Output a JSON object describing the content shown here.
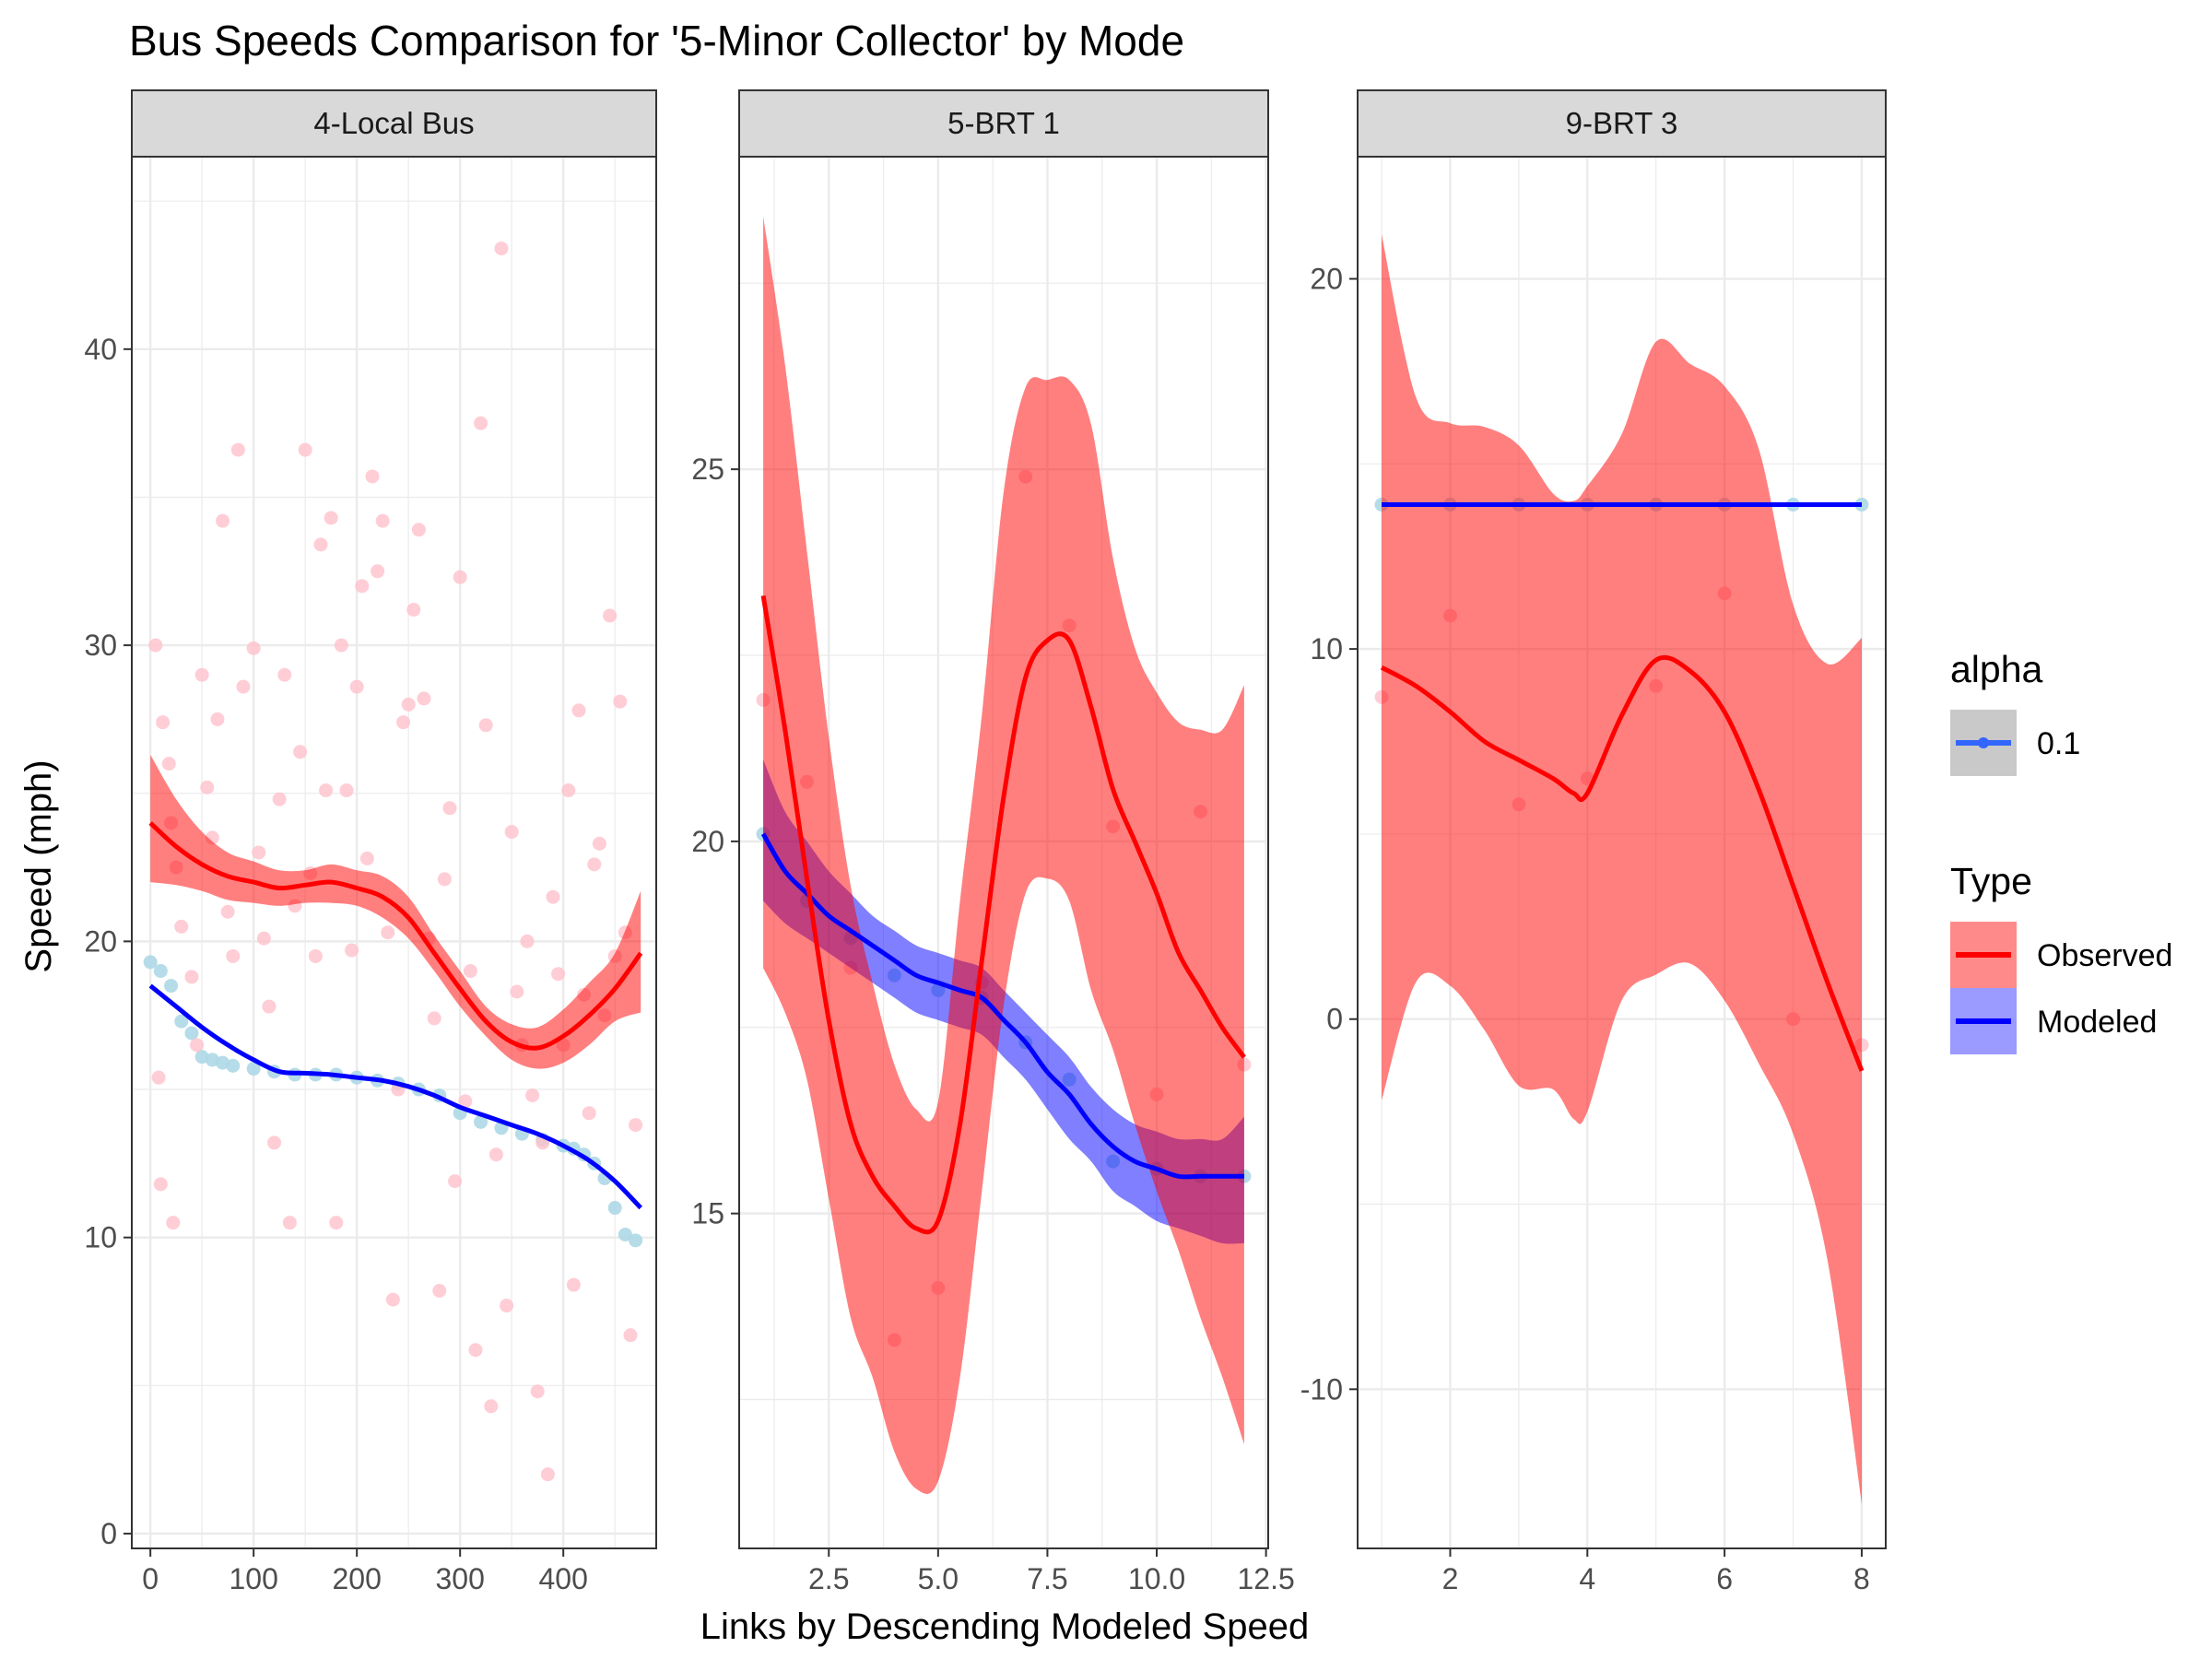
{
  "chart_data": {
    "type": "scatter",
    "title": "Bus Speeds Comparison for '5-Minor Collector' by Mode",
    "xlabel": "Links by Descending Modeled Speed",
    "ylabel": "Speed (mph)",
    "colors": {
      "observed_points": "#ffc0cb",
      "modeled_points": "#add8e6",
      "observed_line": "#ff0000",
      "modeled_line": "#0000ff",
      "observed_band": "#ff0000",
      "modeled_band": "#0000ff",
      "strip_fill": "#d9d9d9",
      "grid": "#ebebeb"
    },
    "legend": {
      "placement": "right",
      "alpha_title": "alpha",
      "alpha_entries": [
        "0.1"
      ],
      "type_title": "Type",
      "type_entries": [
        "Observed",
        "Modeled"
      ]
    },
    "panels": [
      {
        "strip": "4-Local Bus",
        "xlim": [
          -18,
          490
        ],
        "ylim": [
          -0.5,
          46.5
        ],
        "xticks": [
          0,
          100,
          200,
          300,
          400
        ],
        "yticks": [
          0,
          10,
          20,
          30,
          40
        ],
        "observed_points": [
          [
            5,
            30
          ],
          [
            12,
            27.4
          ],
          [
            18,
            26
          ],
          [
            20,
            24
          ],
          [
            25,
            22.5
          ],
          [
            30,
            20.5
          ],
          [
            8,
            15.4
          ],
          [
            10,
            11.8
          ],
          [
            22,
            10.5
          ],
          [
            40,
            18.8
          ],
          [
            45,
            16.5
          ],
          [
            50,
            29
          ],
          [
            55,
            25.2
          ],
          [
            60,
            23.5
          ],
          [
            65,
            27.5
          ],
          [
            70,
            34.2
          ],
          [
            75,
            21
          ],
          [
            80,
            19.5
          ],
          [
            85,
            36.6
          ],
          [
            90,
            28.6
          ],
          [
            100,
            29.9
          ],
          [
            105,
            23
          ],
          [
            110,
            20.1
          ],
          [
            115,
            17.8
          ],
          [
            120,
            13.2
          ],
          [
            125,
            24.8
          ],
          [
            130,
            29
          ],
          [
            135,
            10.5
          ],
          [
            140,
            21.2
          ],
          [
            145,
            26.4
          ],
          [
            150,
            36.6
          ],
          [
            155,
            22.3
          ],
          [
            160,
            19.5
          ],
          [
            165,
            33.4
          ],
          [
            170,
            25.1
          ],
          [
            175,
            34.3
          ],
          [
            180,
            10.5
          ],
          [
            185,
            30
          ],
          [
            190,
            25.1
          ],
          [
            195,
            19.7
          ],
          [
            200,
            28.6
          ],
          [
            205,
            32
          ],
          [
            210,
            22.8
          ],
          [
            215,
            35.7
          ],
          [
            220,
            32.5
          ],
          [
            225,
            34.2
          ],
          [
            230,
            20.3
          ],
          [
            235,
            7.9
          ],
          [
            240,
            15
          ],
          [
            245,
            27.4
          ],
          [
            250,
            28
          ],
          [
            255,
            31.2
          ],
          [
            260,
            33.9
          ],
          [
            265,
            28.2
          ],
          [
            270,
            20.1
          ],
          [
            275,
            17.4
          ],
          [
            280,
            8.2
          ],
          [
            285,
            22.1
          ],
          [
            290,
            24.5
          ],
          [
            295,
            11.9
          ],
          [
            300,
            32.3
          ],
          [
            305,
            14.6
          ],
          [
            310,
            19
          ],
          [
            315,
            6.2
          ],
          [
            320,
            37.5
          ],
          [
            325,
            27.3
          ],
          [
            330,
            4.3
          ],
          [
            335,
            12.8
          ],
          [
            340,
            43.4
          ],
          [
            345,
            7.7
          ],
          [
            350,
            23.7
          ],
          [
            355,
            18.3
          ],
          [
            360,
            16.5
          ],
          [
            365,
            20
          ],
          [
            370,
            14.8
          ],
          [
            375,
            4.8
          ],
          [
            380,
            13.2
          ],
          [
            385,
            2
          ],
          [
            390,
            21.5
          ],
          [
            395,
            18.9
          ],
          [
            400,
            16.5
          ],
          [
            405,
            25.1
          ],
          [
            410,
            8.4
          ],
          [
            415,
            27.8
          ],
          [
            420,
            18.2
          ],
          [
            425,
            14.2
          ],
          [
            430,
            22.6
          ],
          [
            435,
            23.3
          ],
          [
            440,
            17.5
          ],
          [
            445,
            31
          ],
          [
            450,
            19.5
          ],
          [
            455,
            28.1
          ],
          [
            460,
            20.3
          ],
          [
            465,
            6.7
          ],
          [
            470,
            13.8
          ]
        ],
        "modeled_points": [
          [
            0,
            19.3
          ],
          [
            10,
            19
          ],
          [
            20,
            18.5
          ],
          [
            30,
            17.3
          ],
          [
            40,
            16.9
          ],
          [
            50,
            16.1
          ],
          [
            60,
            16
          ],
          [
            70,
            15.9
          ],
          [
            80,
            15.8
          ],
          [
            100,
            15.7
          ],
          [
            120,
            15.6
          ],
          [
            140,
            15.5
          ],
          [
            160,
            15.5
          ],
          [
            180,
            15.5
          ],
          [
            200,
            15.4
          ],
          [
            220,
            15.3
          ],
          [
            240,
            15.2
          ],
          [
            260,
            15
          ],
          [
            280,
            14.8
          ],
          [
            300,
            14.2
          ],
          [
            320,
            13.9
          ],
          [
            340,
            13.7
          ],
          [
            360,
            13.5
          ],
          [
            380,
            13.3
          ],
          [
            400,
            13.1
          ],
          [
            410,
            13
          ],
          [
            420,
            12.8
          ],
          [
            430,
            12.5
          ],
          [
            440,
            12
          ],
          [
            450,
            11
          ],
          [
            460,
            10.1
          ],
          [
            470,
            9.9
          ]
        ],
        "observed_fit": {
          "x": [
            0,
            25,
            50,
            75,
            100,
            125,
            150,
            175,
            200,
            225,
            250,
            275,
            300,
            325,
            350,
            375,
            400,
            425,
            450,
            475
          ],
          "y": [
            24.0,
            23.2,
            22.6,
            22.2,
            22.0,
            21.8,
            21.9,
            22.0,
            21.8,
            21.5,
            20.8,
            19.6,
            18.4,
            17.3,
            16.6,
            16.4,
            16.8,
            17.5,
            18.4,
            19.6
          ],
          "lower": [
            22.0,
            21.9,
            21.7,
            21.4,
            21.3,
            21.2,
            21.3,
            21.3,
            21.2,
            20.8,
            20.1,
            19.0,
            17.8,
            16.8,
            16.0,
            15.7,
            15.9,
            16.5,
            17.3,
            17.6
          ],
          "upper": [
            26.3,
            24.8,
            23.7,
            23.0,
            22.7,
            22.4,
            22.4,
            22.6,
            22.4,
            22.2,
            21.5,
            20.2,
            19.0,
            17.8,
            17.2,
            17.1,
            17.7,
            18.6,
            19.6,
            21.7
          ]
        },
        "modeled_fit": {
          "x": [
            0,
            25,
            50,
            75,
            100,
            125,
            150,
            175,
            200,
            225,
            250,
            275,
            300,
            325,
            350,
            375,
            400,
            425,
            450,
            475
          ],
          "y": [
            18.5,
            17.8,
            17.1,
            16.5,
            16.0,
            15.6,
            15.55,
            15.5,
            15.4,
            15.3,
            15.1,
            14.8,
            14.4,
            14.1,
            13.8,
            13.5,
            13.1,
            12.6,
            11.9,
            11.0
          ]
        }
      },
      {
        "strip": "5-BRT 1",
        "xlim": [
          0.45,
          12.55
        ],
        "ylim": [
          10.5,
          29.2
        ],
        "xticks": [
          2.5,
          5.0,
          7.5,
          10.0,
          12.5
        ],
        "xtick_labels": [
          "2.5",
          "5.0",
          "7.5",
          "10.0",
          "12.5"
        ],
        "yticks": [
          15,
          20,
          25
        ],
        "observed_points": [
          [
            1,
            21.9
          ],
          [
            2,
            20.8
          ],
          [
            3,
            18.3
          ],
          [
            4,
            13.3
          ],
          [
            5,
            14
          ],
          [
            6,
            18.1
          ],
          [
            7,
            24.9
          ],
          [
            8,
            22.9
          ],
          [
            9,
            20.2
          ],
          [
            10,
            16.6
          ],
          [
            11,
            20.4
          ],
          [
            12,
            17
          ]
        ],
        "modeled_points": [
          [
            1,
            20.1
          ],
          [
            2,
            19.2
          ],
          [
            3,
            18.7
          ],
          [
            4,
            18.2
          ],
          [
            5,
            18
          ],
          [
            6,
            17.9
          ],
          [
            7,
            17.3
          ],
          [
            8,
            16.8
          ],
          [
            9,
            15.7
          ],
          [
            10,
            15.6
          ],
          [
            11,
            15.5
          ],
          [
            12,
            15.5
          ]
        ],
        "observed_fit": {
          "x": [
            1,
            1.5,
            2,
            2.5,
            3,
            3.5,
            4,
            4.5,
            5,
            5.5,
            6,
            6.5,
            7,
            7.5,
            8,
            8.5,
            9,
            9.5,
            10,
            10.5,
            11,
            11.5,
            12
          ],
          "y": [
            23.3,
            21.5,
            19.5,
            17.6,
            16.2,
            15.5,
            15.1,
            14.8,
            14.9,
            16.2,
            18.4,
            20.6,
            22.2,
            22.7,
            22.7,
            21.8,
            20.7,
            20.0,
            19.3,
            18.5,
            18.0,
            17.5,
            17.1
          ],
          "lower": [
            18.3,
            17.7,
            16.8,
            15.2,
            13.6,
            12.8,
            11.8,
            11.3,
            11.4,
            12.8,
            15.3,
            17.8,
            19.3,
            19.5,
            19.2,
            18.0,
            17.2,
            16.2,
            15.3,
            14.5,
            13.6,
            12.8,
            11.9
          ],
          "upper": [
            28.4,
            26.4,
            23.9,
            21.4,
            19.4,
            18.1,
            17.0,
            16.4,
            16.5,
            19.2,
            21.7,
            24.7,
            26.1,
            26.2,
            26.2,
            25.6,
            23.8,
            22.6,
            22.0,
            21.6,
            21.5,
            21.5,
            22.1
          ]
        },
        "modeled_fit": {
          "x": [
            1,
            1.5,
            2,
            2.5,
            3,
            3.5,
            4,
            4.5,
            5,
            5.5,
            6,
            6.5,
            7,
            7.5,
            8,
            8.5,
            9,
            9.5,
            10,
            10.5,
            11,
            11.5,
            12
          ],
          "y": [
            20.1,
            19.6,
            19.3,
            19.0,
            18.8,
            18.6,
            18.4,
            18.2,
            18.1,
            18.0,
            17.9,
            17.6,
            17.3,
            16.9,
            16.6,
            16.2,
            15.9,
            15.7,
            15.6,
            15.5,
            15.5,
            15.5,
            15.5
          ],
          "lower": [
            19.2,
            18.9,
            18.7,
            18.5,
            18.3,
            18.1,
            17.9,
            17.7,
            17.6,
            17.5,
            17.4,
            17.1,
            16.8,
            16.4,
            16.0,
            15.7,
            15.3,
            15.1,
            14.9,
            14.8,
            14.7,
            14.6,
            14.6
          ],
          "upper": [
            21.1,
            20.4,
            20.0,
            19.6,
            19.3,
            19.0,
            18.8,
            18.6,
            18.5,
            18.4,
            18.3,
            18.0,
            17.7,
            17.4,
            17.1,
            16.7,
            16.4,
            16.2,
            16.1,
            16.0,
            16.0,
            16.0,
            16.3
          ]
        }
      },
      {
        "strip": "9-BRT 3",
        "xlim": [
          0.65,
          8.35
        ],
        "ylim": [
          -14.3,
          23.3
        ],
        "xticks": [
          2,
          4,
          6,
          8
        ],
        "yticks": [
          -10,
          0,
          10,
          20
        ],
        "observed_points": [
          [
            1,
            8.7
          ],
          [
            2,
            10.9
          ],
          [
            3,
            5.8
          ],
          [
            4,
            6.5
          ],
          [
            5,
            9
          ],
          [
            6,
            11.5
          ],
          [
            7,
            0
          ],
          [
            8,
            -0.7
          ]
        ],
        "modeled_points": [
          [
            1,
            13.9
          ],
          [
            2,
            13.9
          ],
          [
            3,
            13.9
          ],
          [
            4,
            13.9
          ],
          [
            5,
            13.9
          ],
          [
            6,
            13.9
          ],
          [
            7,
            13.9
          ],
          [
            8,
            13.9
          ]
        ],
        "observed_fit": {
          "x": [
            1,
            1.5,
            2,
            2.5,
            3,
            3.5,
            3.8,
            4,
            4.5,
            5,
            5.5,
            6,
            6.5,
            7,
            7.5,
            8
          ],
          "y": [
            9.5,
            9.0,
            8.3,
            7.5,
            7.0,
            6.5,
            6.1,
            6.1,
            8.2,
            9.7,
            9.4,
            8.3,
            6.2,
            3.6,
            1.0,
            -1.4
          ],
          "lower": [
            -2.2,
            1.0,
            0.9,
            -0.3,
            -1.8,
            -1.9,
            -2.7,
            -2.5,
            0.5,
            1.2,
            1.5,
            0.5,
            -1.2,
            -3.1,
            -6.5,
            -13.1
          ],
          "upper": [
            21.2,
            16.8,
            16.1,
            16.0,
            15.5,
            14.2,
            14.0,
            14.4,
            15.8,
            18.3,
            17.7,
            17.1,
            15.4,
            11.2,
            9.6,
            10.3
          ]
        },
        "modeled_fit": {
          "x": [
            1,
            8
          ],
          "y": [
            13.9,
            13.9
          ]
        }
      }
    ]
  }
}
